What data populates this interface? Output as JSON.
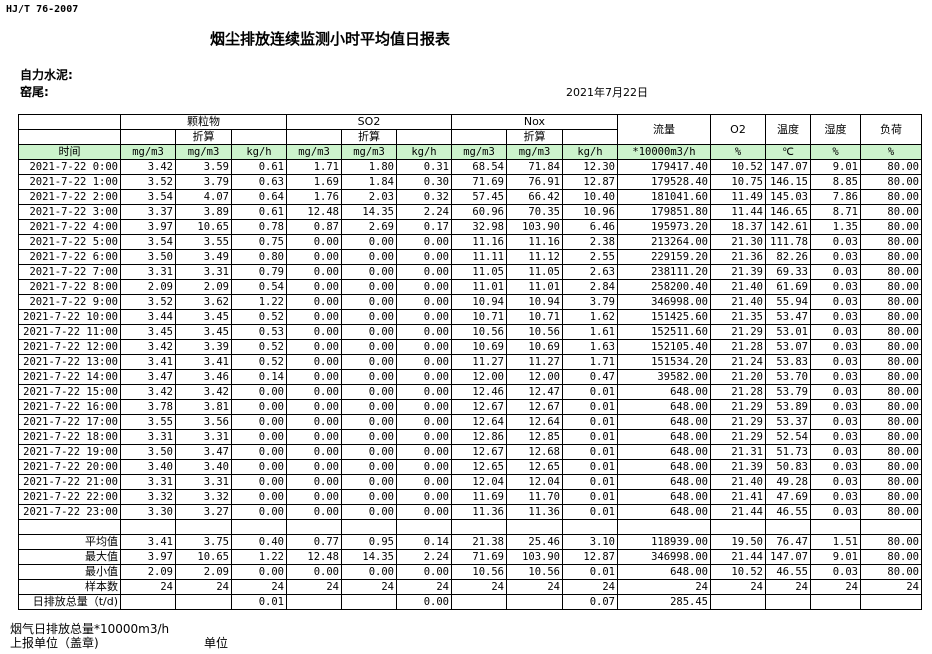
{
  "header": {
    "standard": "HJ/T  76-2007",
    "title": "烟尘排放连续监测小时平均值日报表",
    "company": "自力水泥:",
    "unit": "窑尾:",
    "date": "2021年7月22日"
  },
  "columns": {
    "groups": [
      "颗粒物",
      "SO2",
      "Nox"
    ],
    "converted": "折算",
    "flow": "流量",
    "o2": "O2",
    "temp": "温度",
    "humidity": "湿度",
    "load": "负荷",
    "time": "时间",
    "units": [
      "mg/m3",
      "mg/m3",
      "kg/h",
      "mg/m3",
      "mg/m3",
      "kg/h",
      "mg/m3",
      "mg/m3",
      "kg/h",
      "*10000m3/h",
      "%",
      "℃",
      "%",
      "%"
    ]
  },
  "rows": [
    [
      "2021-7-22 0:00",
      "3.42",
      "3.59",
      "0.61",
      "1.71",
      "1.80",
      "0.31",
      "68.54",
      "71.84",
      "12.30",
      "179417.40",
      "10.52",
      "147.07",
      "9.01",
      "80.00"
    ],
    [
      "2021-7-22 1:00",
      "3.52",
      "3.79",
      "0.63",
      "1.69",
      "1.84",
      "0.30",
      "71.69",
      "76.91",
      "12.87",
      "179528.40",
      "10.75",
      "146.15",
      "8.85",
      "80.00"
    ],
    [
      "2021-7-22 2:00",
      "3.54",
      "4.07",
      "0.64",
      "1.76",
      "2.03",
      "0.32",
      "57.45",
      "66.42",
      "10.40",
      "181041.60",
      "11.49",
      "145.03",
      "7.86",
      "80.00"
    ],
    [
      "2021-7-22 3:00",
      "3.37",
      "3.89",
      "0.61",
      "12.48",
      "14.35",
      "2.24",
      "60.96",
      "70.35",
      "10.96",
      "179851.80",
      "11.44",
      "146.65",
      "8.71",
      "80.00"
    ],
    [
      "2021-7-22 4:00",
      "3.97",
      "10.65",
      "0.78",
      "0.87",
      "2.69",
      "0.17",
      "32.98",
      "103.90",
      "6.46",
      "195973.20",
      "18.37",
      "142.61",
      "1.35",
      "80.00"
    ],
    [
      "2021-7-22 5:00",
      "3.54",
      "3.55",
      "0.75",
      "0.00",
      "0.00",
      "0.00",
      "11.16",
      "11.16",
      "2.38",
      "213264.00",
      "21.30",
      "111.78",
      "0.03",
      "80.00"
    ],
    [
      "2021-7-22 6:00",
      "3.50",
      "3.49",
      "0.80",
      "0.00",
      "0.00",
      "0.00",
      "11.11",
      "11.12",
      "2.55",
      "229159.20",
      "21.36",
      "82.26",
      "0.03",
      "80.00"
    ],
    [
      "2021-7-22 7:00",
      "3.31",
      "3.31",
      "0.79",
      "0.00",
      "0.00",
      "0.00",
      "11.05",
      "11.05",
      "2.63",
      "238111.20",
      "21.39",
      "69.33",
      "0.03",
      "80.00"
    ],
    [
      "2021-7-22 8:00",
      "2.09",
      "2.09",
      "0.54",
      "0.00",
      "0.00",
      "0.00",
      "11.01",
      "11.01",
      "2.84",
      "258200.40",
      "21.40",
      "61.69",
      "0.03",
      "80.00"
    ],
    [
      "2021-7-22 9:00",
      "3.52",
      "3.62",
      "1.22",
      "0.00",
      "0.00",
      "0.00",
      "10.94",
      "10.94",
      "3.79",
      "346998.00",
      "21.40",
      "55.94",
      "0.03",
      "80.00"
    ],
    [
      "2021-7-22 10:00",
      "3.44",
      "3.45",
      "0.52",
      "0.00",
      "0.00",
      "0.00",
      "10.71",
      "10.71",
      "1.62",
      "151425.60",
      "21.35",
      "53.47",
      "0.03",
      "80.00"
    ],
    [
      "2021-7-22 11:00",
      "3.45",
      "3.45",
      "0.53",
      "0.00",
      "0.00",
      "0.00",
      "10.56",
      "10.56",
      "1.61",
      "152511.60",
      "21.29",
      "53.01",
      "0.03",
      "80.00"
    ],
    [
      "2021-7-22 12:00",
      "3.42",
      "3.39",
      "0.52",
      "0.00",
      "0.00",
      "0.00",
      "10.69",
      "10.69",
      "1.63",
      "152105.40",
      "21.28",
      "53.07",
      "0.03",
      "80.00"
    ],
    [
      "2021-7-22 13:00",
      "3.41",
      "3.41",
      "0.52",
      "0.00",
      "0.00",
      "0.00",
      "11.27",
      "11.27",
      "1.71",
      "151534.20",
      "21.24",
      "53.83",
      "0.03",
      "80.00"
    ],
    [
      "2021-7-22 14:00",
      "3.47",
      "3.46",
      "0.14",
      "0.00",
      "0.00",
      "0.00",
      "12.00",
      "12.00",
      "0.47",
      "39582.00",
      "21.20",
      "53.70",
      "0.03",
      "80.00"
    ],
    [
      "2021-7-22 15:00",
      "3.42",
      "3.42",
      "0.00",
      "0.00",
      "0.00",
      "0.00",
      "12.46",
      "12.47",
      "0.01",
      "648.00",
      "21.28",
      "53.79",
      "0.03",
      "80.00"
    ],
    [
      "2021-7-22 16:00",
      "3.78",
      "3.81",
      "0.00",
      "0.00",
      "0.00",
      "0.00",
      "12.67",
      "12.67",
      "0.01",
      "648.00",
      "21.29",
      "53.89",
      "0.03",
      "80.00"
    ],
    [
      "2021-7-22 17:00",
      "3.55",
      "3.56",
      "0.00",
      "0.00",
      "0.00",
      "0.00",
      "12.64",
      "12.64",
      "0.01",
      "648.00",
      "21.29",
      "53.37",
      "0.03",
      "80.00"
    ],
    [
      "2021-7-22 18:00",
      "3.31",
      "3.31",
      "0.00",
      "0.00",
      "0.00",
      "0.00",
      "12.86",
      "12.85",
      "0.01",
      "648.00",
      "21.29",
      "52.54",
      "0.03",
      "80.00"
    ],
    [
      "2021-7-22 19:00",
      "3.50",
      "3.47",
      "0.00",
      "0.00",
      "0.00",
      "0.00",
      "12.67",
      "12.68",
      "0.01",
      "648.00",
      "21.31",
      "51.73",
      "0.03",
      "80.00"
    ],
    [
      "2021-7-22 20:00",
      "3.40",
      "3.40",
      "0.00",
      "0.00",
      "0.00",
      "0.00",
      "12.65",
      "12.65",
      "0.01",
      "648.00",
      "21.39",
      "50.83",
      "0.03",
      "80.00"
    ],
    [
      "2021-7-22 21:00",
      "3.31",
      "3.31",
      "0.00",
      "0.00",
      "0.00",
      "0.00",
      "12.04",
      "12.04",
      "0.01",
      "648.00",
      "21.40",
      "49.28",
      "0.03",
      "80.00"
    ],
    [
      "2021-7-22 22:00",
      "3.32",
      "3.32",
      "0.00",
      "0.00",
      "0.00",
      "0.00",
      "11.69",
      "11.70",
      "0.01",
      "648.00",
      "21.41",
      "47.69",
      "0.03",
      "80.00"
    ],
    [
      "2021-7-22 23:00",
      "3.30",
      "3.27",
      "0.00",
      "0.00",
      "0.00",
      "0.00",
      "11.36",
      "11.36",
      "0.01",
      "648.00",
      "21.44",
      "46.55",
      "0.03",
      "80.00"
    ]
  ],
  "summary": [
    [
      "平均值",
      "3.41",
      "3.75",
      "0.40",
      "0.77",
      "0.95",
      "0.14",
      "21.38",
      "25.46",
      "3.10",
      "118939.00",
      "19.50",
      "76.47",
      "1.51",
      "80.00"
    ],
    [
      "最大值",
      "3.97",
      "10.65",
      "1.22",
      "12.48",
      "14.35",
      "2.24",
      "71.69",
      "103.90",
      "12.87",
      "346998.00",
      "21.44",
      "147.07",
      "9.01",
      "80.00"
    ],
    [
      "最小值",
      "2.09",
      "2.09",
      "0.00",
      "0.00",
      "0.00",
      "0.00",
      "10.56",
      "10.56",
      "0.01",
      "648.00",
      "10.52",
      "46.55",
      "0.03",
      "80.00"
    ],
    [
      "样本数",
      "24",
      "24",
      "24",
      "24",
      "24",
      "24",
      "24",
      "24",
      "24",
      "24",
      "24",
      "24",
      "24",
      "24"
    ],
    [
      "日排放总量（t/d)",
      "",
      "",
      "0.01",
      "",
      "",
      "0.00",
      "",
      "",
      "0.07",
      "285.45",
      "",
      "",
      "",
      ""
    ]
  ],
  "footer": {
    "flue_total": "烟气日排放总量*10000m3/h",
    "reporter": "上报单位（盖章)",
    "unit_label": "单位"
  }
}
